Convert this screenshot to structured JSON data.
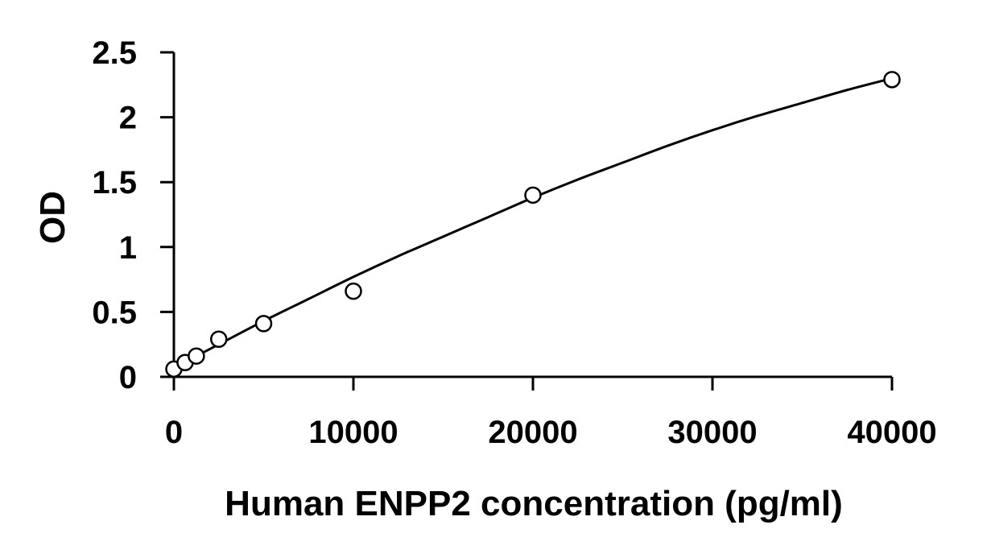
{
  "chart_data": {
    "type": "scatter",
    "title": "",
    "xlabel": "Human ENPP2 concentration (pg/ml)",
    "ylabel": "OD",
    "xlim": [
      0,
      40000
    ],
    "ylim": [
      0,
      2.5
    ],
    "x_ticks": [
      0,
      10000,
      20000,
      30000,
      40000
    ],
    "x_tick_labels": [
      "0",
      "10000",
      "20000",
      "30000",
      "40000"
    ],
    "y_ticks": [
      0,
      0.5,
      1,
      1.5,
      2,
      2.5
    ],
    "y_tick_labels": [
      "0",
      "0.5",
      "1",
      "1.5",
      "2",
      "2.5"
    ],
    "grid": false,
    "legend": "none",
    "series": [
      {
        "marker": "open-circle",
        "x": [
          0,
          625,
          1250,
          2500,
          5000,
          10000,
          20000,
          40000
        ],
        "y": [
          0.06,
          0.11,
          0.16,
          0.29,
          0.41,
          0.66,
          1.4,
          2.29
        ]
      }
    ],
    "trendline": {
      "type": "fitted-curve",
      "x": [
        0,
        2500,
        5000,
        7500,
        10000,
        12500,
        15000,
        17500,
        20000,
        22500,
        25000,
        27500,
        30000,
        32500,
        35000,
        37500,
        40000
      ],
      "y": [
        0.07,
        0.25,
        0.43,
        0.6,
        0.77,
        0.93,
        1.08,
        1.23,
        1.38,
        1.52,
        1.65,
        1.78,
        1.9,
        2.01,
        2.11,
        2.21,
        2.3
      ]
    },
    "colors": {
      "axis": "#000000",
      "marker_stroke": "#000000",
      "marker_fill": "#ffffff",
      "line": "#000000"
    }
  }
}
